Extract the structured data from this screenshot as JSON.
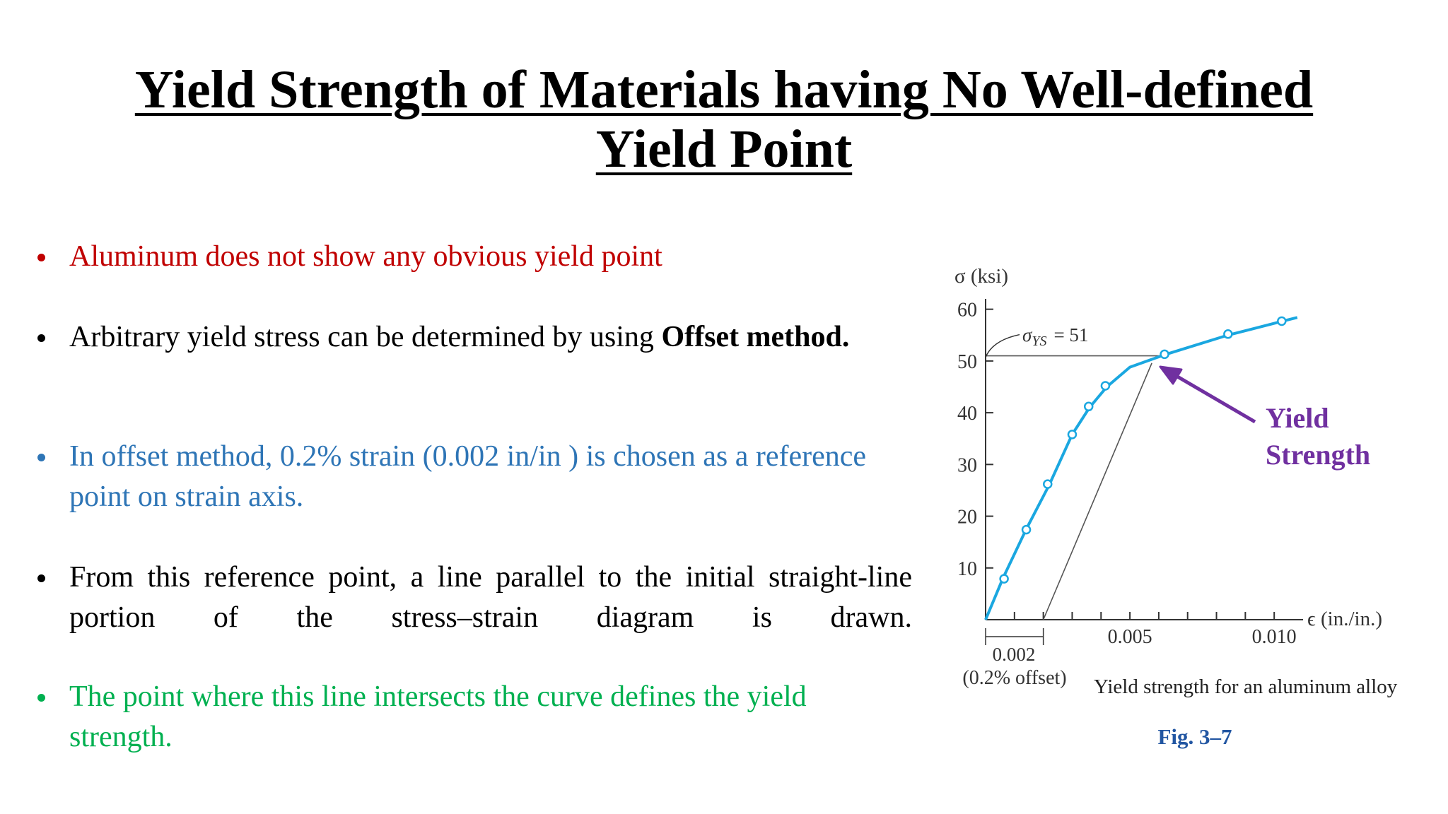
{
  "title": [
    "Yield Strength of Materials having No Well-defined",
    "Yield Point"
  ],
  "bullets": [
    {
      "color": "#c00000",
      "runs": [
        {
          "text": "Aluminum does not show any obvious yield point",
          "bold": false
        }
      ]
    },
    {
      "color": "#000000",
      "runs": [
        {
          "text": "Arbitrary yield stress can be determined by using ",
          "bold": false
        },
        {
          "text": "Offset method.",
          "bold": true
        }
      ]
    },
    {
      "color": "#2e75b6",
      "runs": [
        {
          "text": "In offset method, 0.2% strain (0.002 in/in ) is chosen as a reference point on strain axis.",
          "bold": false
        }
      ]
    },
    {
      "color": "#000000",
      "justify": true,
      "runs": [
        {
          "text": "From this reference point, a line parallel to the initial straight-line portion of the stress–strain diagram is drawn.",
          "bold": false
        }
      ]
    },
    {
      "color": "#00b050",
      "runs": [
        {
          "text": "The point where this line intersects the curve defines the yield strength.",
          "bold": false
        }
      ]
    }
  ],
  "chart_data": {
    "type": "line",
    "ylabel": "σ (ksi)",
    "xlabel": "ϵ (in./in.)",
    "xlim": [
      0,
      0.011
    ],
    "ylim": [
      0,
      62
    ],
    "xticks": [
      0.005,
      {
        "value": 0.01,
        "label": "0.010"
      }
    ],
    "xminorticks": [
      0.001,
      0.002,
      0.003,
      0.004,
      0.006,
      0.007,
      0.008,
      0.009
    ],
    "yticks": [
      10,
      20,
      30,
      40,
      50,
      60
    ],
    "series": [
      {
        "x": [
          0,
          0.0006,
          0.0014,
          0.0022,
          0.003,
          0.0036,
          0.0042,
          0.005,
          0.0062,
          0.0084,
          0.0103,
          0.0108
        ],
        "values": [
          0,
          8,
          17.4,
          26,
          35.8,
          41,
          45,
          48.8,
          51.2,
          55,
          57.7,
          58.4
        ],
        "color": "#1aa7e0"
      },
      {
        "x": [
          0.00064,
          0.00141,
          0.00215,
          0.003,
          0.00357,
          0.00415,
          0.0062,
          0.0084,
          0.01026
        ],
        "values": [
          7.9,
          17.4,
          26.2,
          35.8,
          41.2,
          45.2,
          51.3,
          55.2,
          57.7
        ],
        "color": "#1aa7e0",
        "marker": "circle"
      },
      {
        "x": [
          0.002,
          0.00576
        ],
        "values": [
          0,
          49.6
        ],
        "color": "#555555"
      },
      {
        "x": [
          0,
          0.0062
        ],
        "values": [
          51,
          51
        ],
        "color": "#555555"
      }
    ],
    "yield_label": {
      "symbol": "σ",
      "sub": "YS",
      "eq": "= 51"
    },
    "offset_label": "0.002",
    "offset_note": "(0.2% offset)",
    "caption": "Yield strength for an aluminum alloy",
    "figure": "Fig. 3–7",
    "callout": [
      "Yield",
      "Strength"
    ],
    "callout_color": "#7030a0"
  }
}
